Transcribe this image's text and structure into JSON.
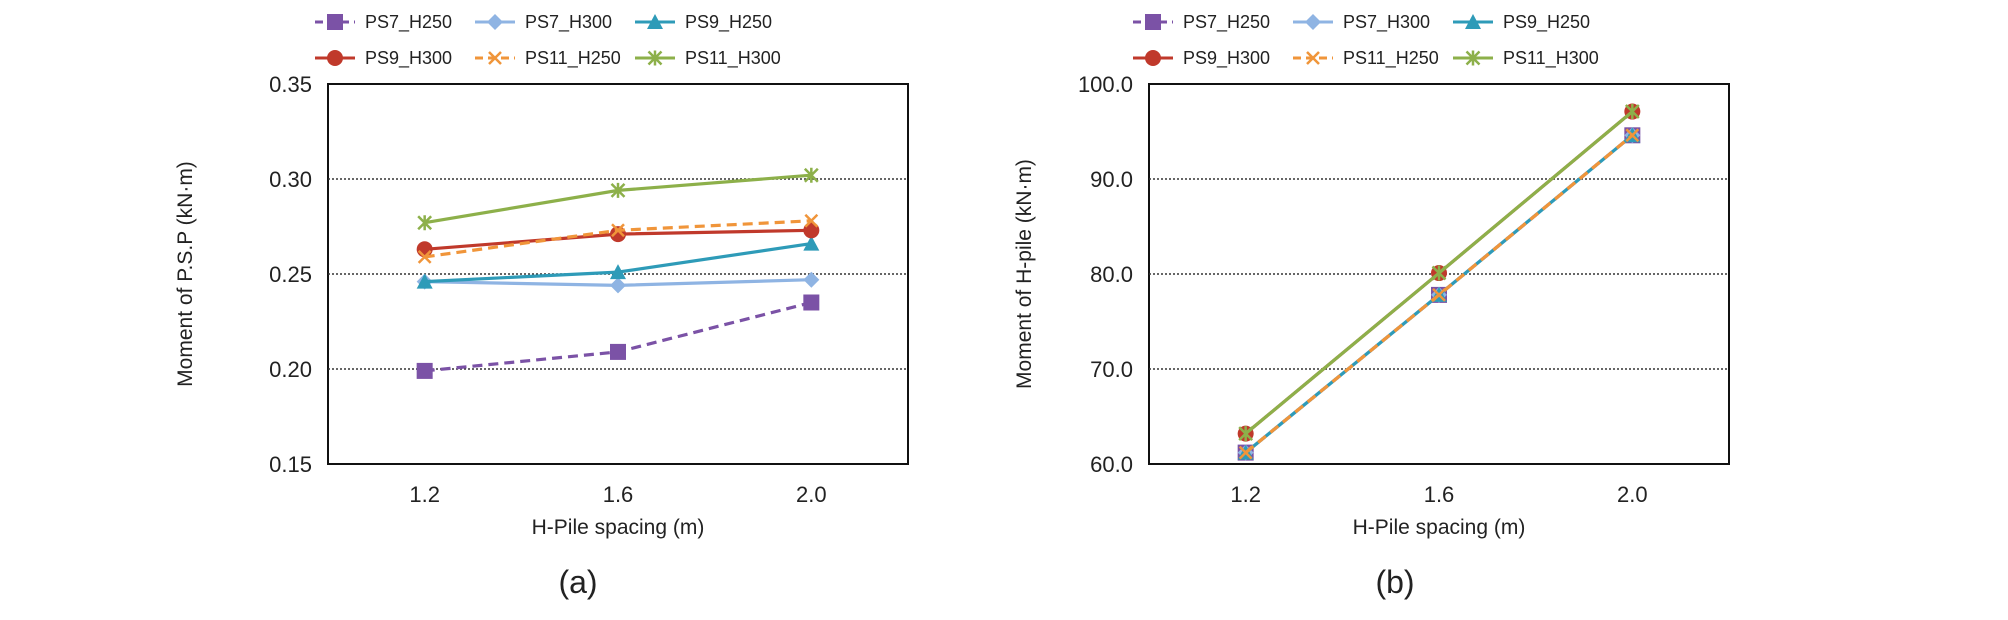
{
  "chart_data": [
    {
      "type": "line",
      "panel_label": "(a)",
      "title": "",
      "xlabel": "H-Pile spacing (m)",
      "ylabel": "Moment of P.S.P (kN·m)",
      "categories": [
        "1.2",
        "1.6",
        "2.0"
      ],
      "ylim": [
        0.15,
        0.35
      ],
      "yticks": [
        "0.15",
        "0.20",
        "0.25",
        "0.30",
        "0.35"
      ],
      "ytick_values": [
        0.15,
        0.2,
        0.25,
        0.3,
        0.35
      ],
      "grid": "horizontal dotted",
      "legend_position": "top",
      "series": [
        {
          "name": "PS7_H250",
          "values": [
            0.199,
            0.209,
            0.235
          ],
          "color": "#7B52A6",
          "dash": "dashed",
          "marker": "square"
        },
        {
          "name": "PS7_H300",
          "values": [
            0.246,
            0.244,
            0.247
          ],
          "color": "#8FB4E3",
          "dash": "solid",
          "marker": "diamond"
        },
        {
          "name": "PS9_H250",
          "values": [
            0.246,
            0.251,
            0.266
          ],
          "color": "#2E9BB8",
          "dash": "solid",
          "marker": "triangle"
        },
        {
          "name": "PS9_H300",
          "values": [
            0.263,
            0.271,
            0.273
          ],
          "color": "#C0392B",
          "dash": "solid",
          "marker": "circle"
        },
        {
          "name": "PS11_H250",
          "values": [
            0.259,
            0.273,
            0.278
          ],
          "color": "#F0953A",
          "dash": "dashed",
          "marker": "x"
        },
        {
          "name": "PS11_H300",
          "values": [
            0.277,
            0.294,
            0.302
          ],
          "color": "#8DB04A",
          "dash": "solid",
          "marker": "star"
        }
      ]
    },
    {
      "type": "line",
      "panel_label": "(b)",
      "title": "",
      "xlabel": "H-Pile spacing (m)",
      "ylabel": "Moment of H-pile (kN·m)",
      "categories": [
        "1.2",
        "1.6",
        "2.0"
      ],
      "ylim": [
        60.0,
        100.0
      ],
      "yticks": [
        "60.0",
        "70.0",
        "80.0",
        "90.0",
        "100.0"
      ],
      "ytick_values": [
        60.0,
        70.0,
        80.0,
        90.0,
        100.0
      ],
      "grid": "horizontal dotted",
      "legend_position": "top",
      "series": [
        {
          "name": "PS7_H250",
          "values": [
            61.2,
            77.8,
            94.6
          ],
          "color": "#7B52A6",
          "dash": "dashed",
          "marker": "square"
        },
        {
          "name": "PS7_H300",
          "values": [
            61.2,
            77.8,
            94.6
          ],
          "color": "#8FB4E3",
          "dash": "solid",
          "marker": "diamond"
        },
        {
          "name": "PS9_H250",
          "values": [
            61.2,
            77.8,
            94.6
          ],
          "color": "#2E9BB8",
          "dash": "solid",
          "marker": "triangle"
        },
        {
          "name": "PS9_H300",
          "values": [
            63.2,
            80.1,
            97.1
          ],
          "color": "#C0392B",
          "dash": "solid",
          "marker": "circle"
        },
        {
          "name": "PS11_H250",
          "values": [
            61.2,
            77.8,
            94.6
          ],
          "color": "#F0953A",
          "dash": "dashed",
          "marker": "x"
        },
        {
          "name": "PS11_H300",
          "values": [
            63.2,
            80.1,
            97.1
          ],
          "color": "#8DB04A",
          "dash": "solid",
          "marker": "star"
        }
      ]
    }
  ]
}
